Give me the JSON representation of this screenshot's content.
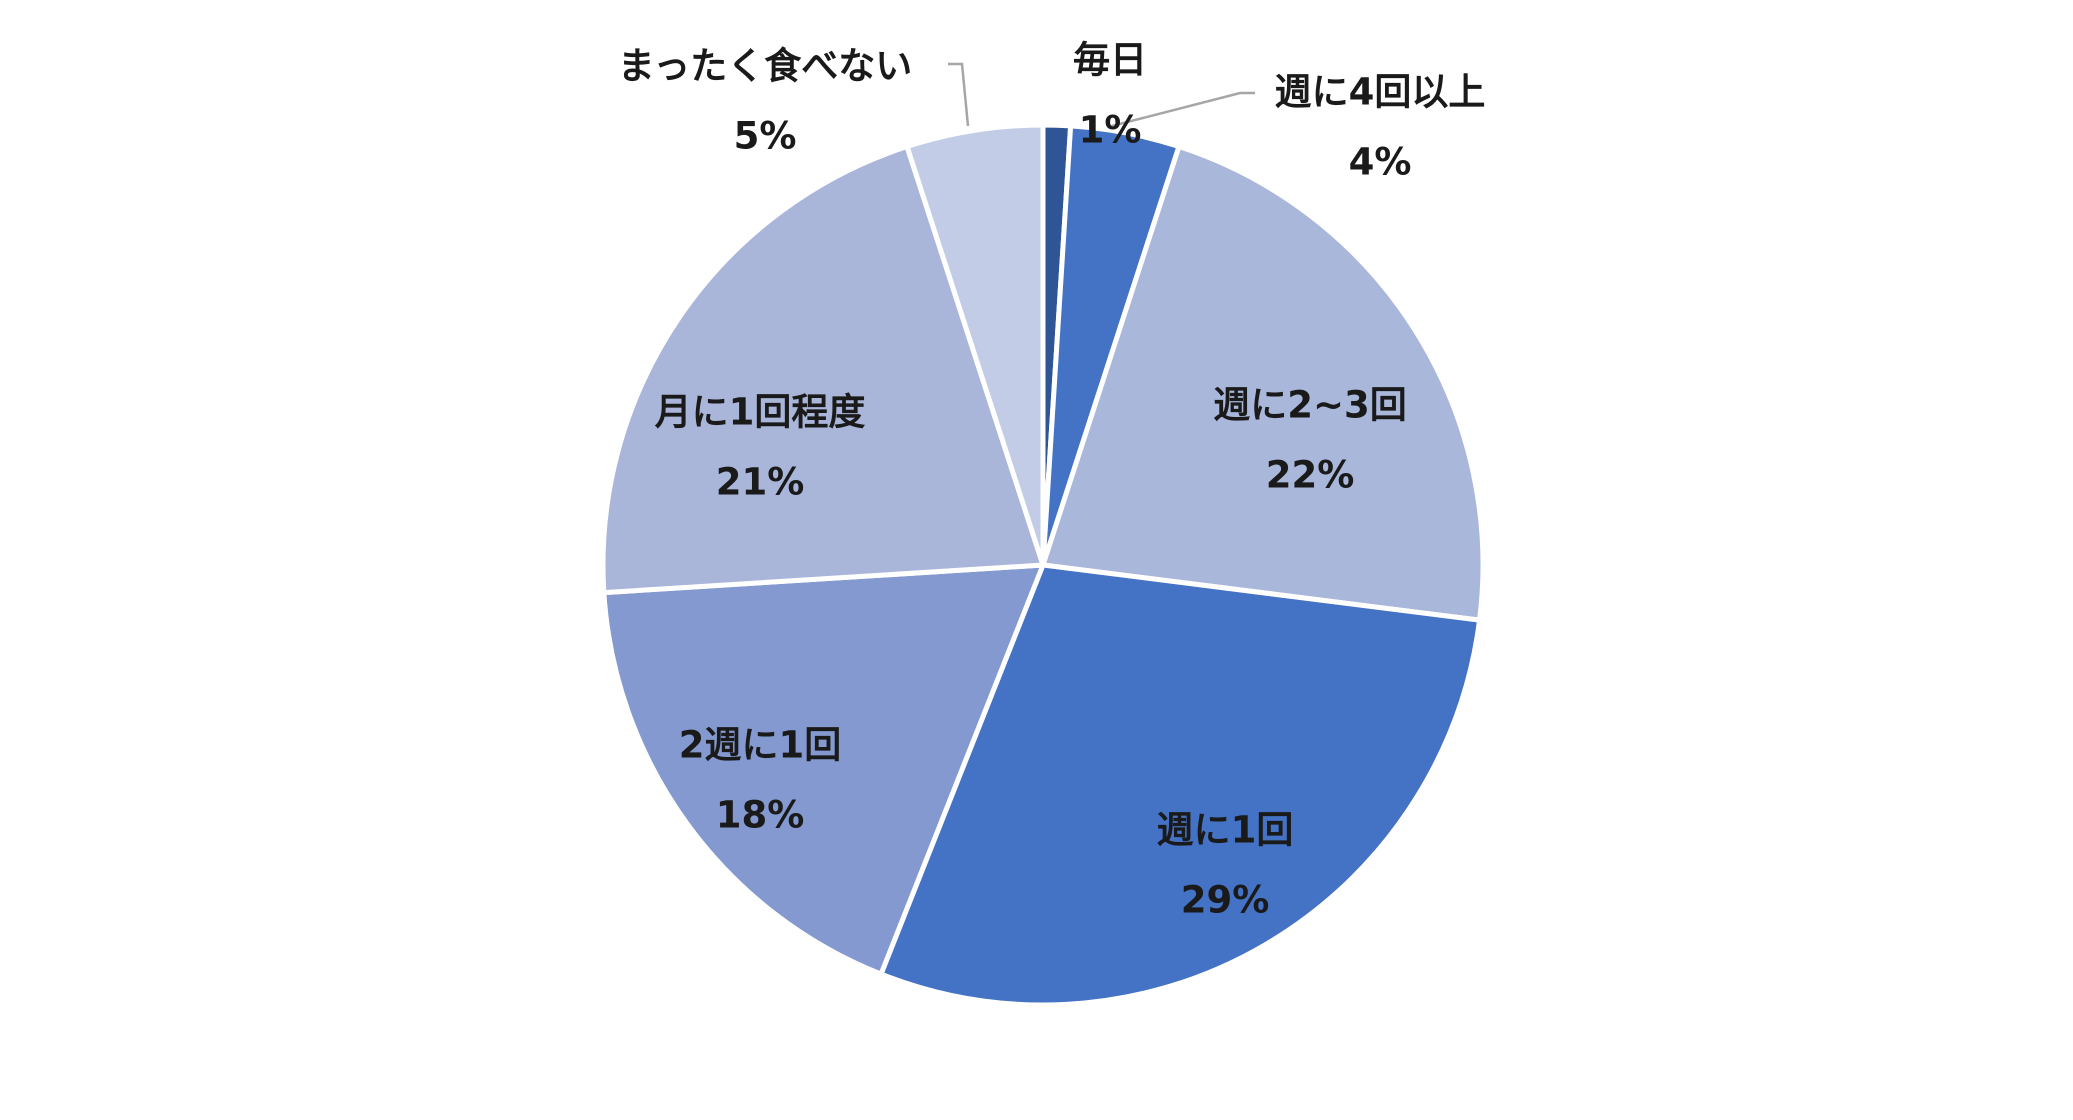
{
  "chart_data": {
    "type": "pie",
    "start": "12 o'clock, clockwise",
    "slices": [
      {
        "label": "毎日",
        "value": 1,
        "pct": "1%",
        "color": "#2f5597"
      },
      {
        "label": "週に4回以上",
        "value": 4,
        "pct": "4%",
        "color": "#4472c4"
      },
      {
        "label": "週に2~3回",
        "value": 22,
        "pct": "22%",
        "color": "#a9b7da"
      },
      {
        "label": "週に1回",
        "value": 29,
        "pct": "29%",
        "color": "#4472c4"
      },
      {
        "label": "2週に1回",
        "value": 18,
        "pct": "18%",
        "color": "#8399cf"
      },
      {
        "label": "月に1回程度",
        "value": 21,
        "pct": "21%",
        "color": "#a9b6d9"
      },
      {
        "label": "まったく食べない",
        "value": 5,
        "pct": "5%",
        "color": "#c2cce6"
      }
    ],
    "legend": "none",
    "data_labels": "category name and percentage"
  }
}
